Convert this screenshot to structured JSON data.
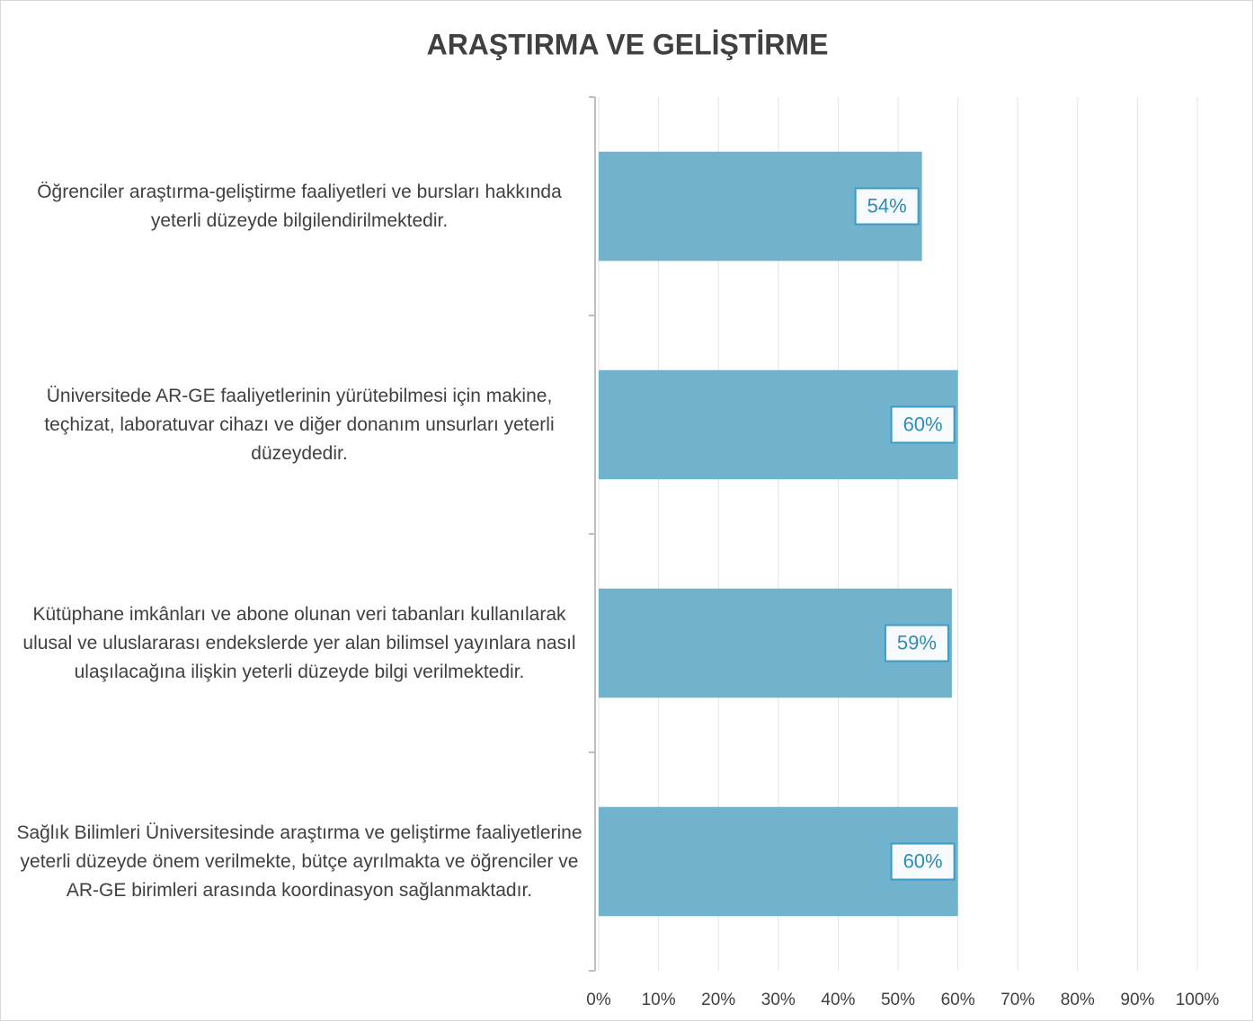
{
  "chart_data": {
    "type": "barh",
    "title": "ARAŞTIRMA VE GELİŞTİRME",
    "categories": [
      "Öğrenciler araştırma-geliştirme faaliyetleri ve bursları hakkında yeterli düzeyde bilgilendirilmektedir.",
      "Üniversitede AR-GE faaliyetlerinin yürütebilmesi için makine, teçhizat, laboratuvar cihazı ve diğer donanım unsurları yeterli düzeydedir.",
      "Kütüphane imkânları ve abone olunan veri tabanları kullanılarak ulusal ve uluslararası endekslerde yer alan bilimsel yayınlara nasıl ulaşılacağına ilişkin yeterli düzeyde bilgi verilmektedir.",
      "Sağlık Bilimleri Üniversitesinde araştırma ve geliştirme faaliyetlerine yeterli düzeyde önem verilmekte, bütçe ayrılmakta ve öğrenciler ve AR-GE birimleri arasında koordinasyon sağlanmaktadır."
    ],
    "values": [
      54,
      60,
      59,
      60
    ],
    "value_labels": [
      "54%",
      "60%",
      "59%",
      "60%"
    ],
    "color": "#71b3cd",
    "xlim": [
      0,
      100
    ],
    "xticks": [
      {
        "value": 0,
        "label": "0%"
      },
      {
        "value": 10,
        "label": "10%"
      },
      {
        "value": 20,
        "label": "20%"
      },
      {
        "value": 30,
        "label": "30%"
      },
      {
        "value": 40,
        "label": "40%"
      },
      {
        "value": 50,
        "label": "50%"
      },
      {
        "value": 60,
        "label": "60%"
      },
      {
        "value": 70,
        "label": "70%"
      },
      {
        "value": 80,
        "label": "80%"
      },
      {
        "value": 90,
        "label": "90%"
      },
      {
        "value": 100,
        "label": "100%"
      }
    ],
    "grid": true
  }
}
